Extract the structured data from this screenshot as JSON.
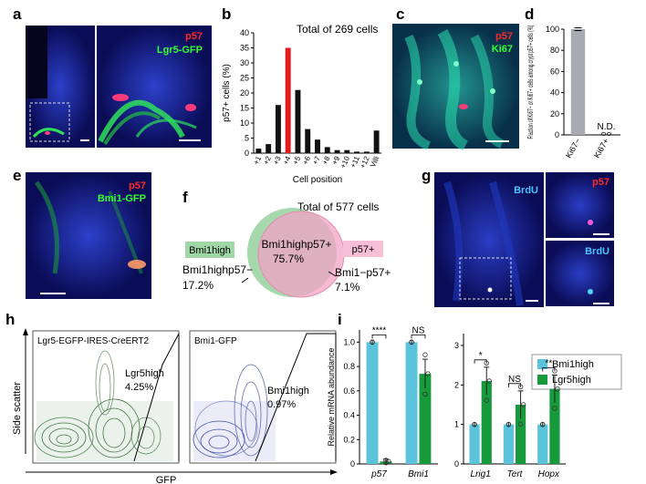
{
  "panels": {
    "a": {
      "label": "a",
      "channels": {
        "c1": "p57",
        "c2": "Lgr5-GFP"
      }
    },
    "b": {
      "label": "b",
      "total": "Total of 269 cells"
    },
    "c": {
      "label": "c",
      "channels": {
        "c1": "p57",
        "c2": "Ki67"
      }
    },
    "d": {
      "label": "d"
    },
    "e": {
      "label": "e",
      "channels": {
        "c1": "p57",
        "c2": "Bmi1-GFP"
      }
    },
    "f": {
      "label": "f",
      "total": "Total of 577 cells",
      "left_tag": "Bmi1high",
      "right_tag": "p57+",
      "center_label": "Bmi1highp57+",
      "center_pct": "75.7%",
      "left_label": "Bmi1highp57−",
      "left_pct": "17.2%",
      "right_label": "Bmi1−p57+",
      "right_pct": "7.1%"
    },
    "g": {
      "label": "g",
      "channels": {
        "c1": "BrdU",
        "c2": "p57",
        "c3": "BrdU"
      }
    },
    "h": {
      "label": "h",
      "ylabel": "Side scatter",
      "xlabel": "GFP",
      "plot1_title": "Lgr5-EGFP-IRES-CreERT2",
      "plot1_gate": "Lgr5high",
      "plot1_pct": "4.25%",
      "plot2_title": "Bmi1-GFP",
      "plot2_gate": "Bmi1high",
      "plot2_pct": "0.97%"
    },
    "i": {
      "label": "i",
      "legend": [
        "Bmi1high",
        "Lgr5high"
      ]
    }
  },
  "colors": {
    "bmi1": "#5bc3dc",
    "lgr5": "#169a3c",
    "highlight": "#e8191b",
    "bar": "#111111",
    "grey_bar": "#a9a9b4"
  },
  "chart_data": [
    {
      "type": "bar",
      "panel": "b",
      "title": "Total of 269 cells",
      "xlabel": "Cell position",
      "ylabel": "p57+ cells (%)",
      "categories": [
        "+1",
        "+2",
        "+3",
        "+4",
        "+5",
        "+6",
        "+7",
        "+8",
        "+9",
        "+10",
        "+11",
        "+12",
        "Villi"
      ],
      "values": [
        1.5,
        3,
        16,
        35,
        21,
        8,
        4.5,
        2,
        1,
        1,
        0.5,
        0.5,
        7.5
      ],
      "highlight_index": 3,
      "ylim": [
        0,
        40
      ],
      "yticks": [
        "0",
        "5",
        "10",
        "15",
        "20",
        "25",
        "30",
        "35",
        "40"
      ]
    },
    {
      "type": "bar",
      "panel": "d",
      "ylabel": "Fraction of Ki67− or Ki67+ cells among crypt p57+ cells (%)",
      "categories": [
        "Ki67−",
        "Ki67+"
      ],
      "values": [
        100,
        0
      ],
      "annotations": [
        "",
        "N.D."
      ],
      "ylim": [
        0,
        100
      ],
      "yticks": [
        "0",
        "20",
        "40",
        "60",
        "80",
        "100"
      ]
    },
    {
      "type": "bar",
      "panel": "i-left",
      "ylabel": "Relative mRNA abundance",
      "categories": [
        "p57",
        "Bmi1"
      ],
      "series": [
        {
          "name": "Bmi1high",
          "values": [
            1.0,
            1.0
          ]
        },
        {
          "name": "Lgr5high",
          "values": [
            0.02,
            0.74
          ]
        }
      ],
      "significance": [
        "****",
        "NS"
      ],
      "ylim": [
        0,
        1.1
      ],
      "yticks": [
        "0",
        "0.2",
        "0.4",
        "0.6",
        "0.8",
        "1.0"
      ]
    },
    {
      "type": "bar",
      "panel": "i-right",
      "categories": [
        "Lrig1",
        "Tert",
        "Hopx"
      ],
      "series": [
        {
          "name": "Bmi1high",
          "values": [
            1.0,
            1.0,
            1.0
          ]
        },
        {
          "name": "Lgr5high",
          "values": [
            2.1,
            1.5,
            1.9
          ]
        }
      ],
      "significance": [
        "*",
        "NS",
        "**"
      ],
      "ylim": [
        0,
        3.3
      ],
      "yticks": [
        "0",
        "1",
        "2",
        "3"
      ]
    }
  ]
}
